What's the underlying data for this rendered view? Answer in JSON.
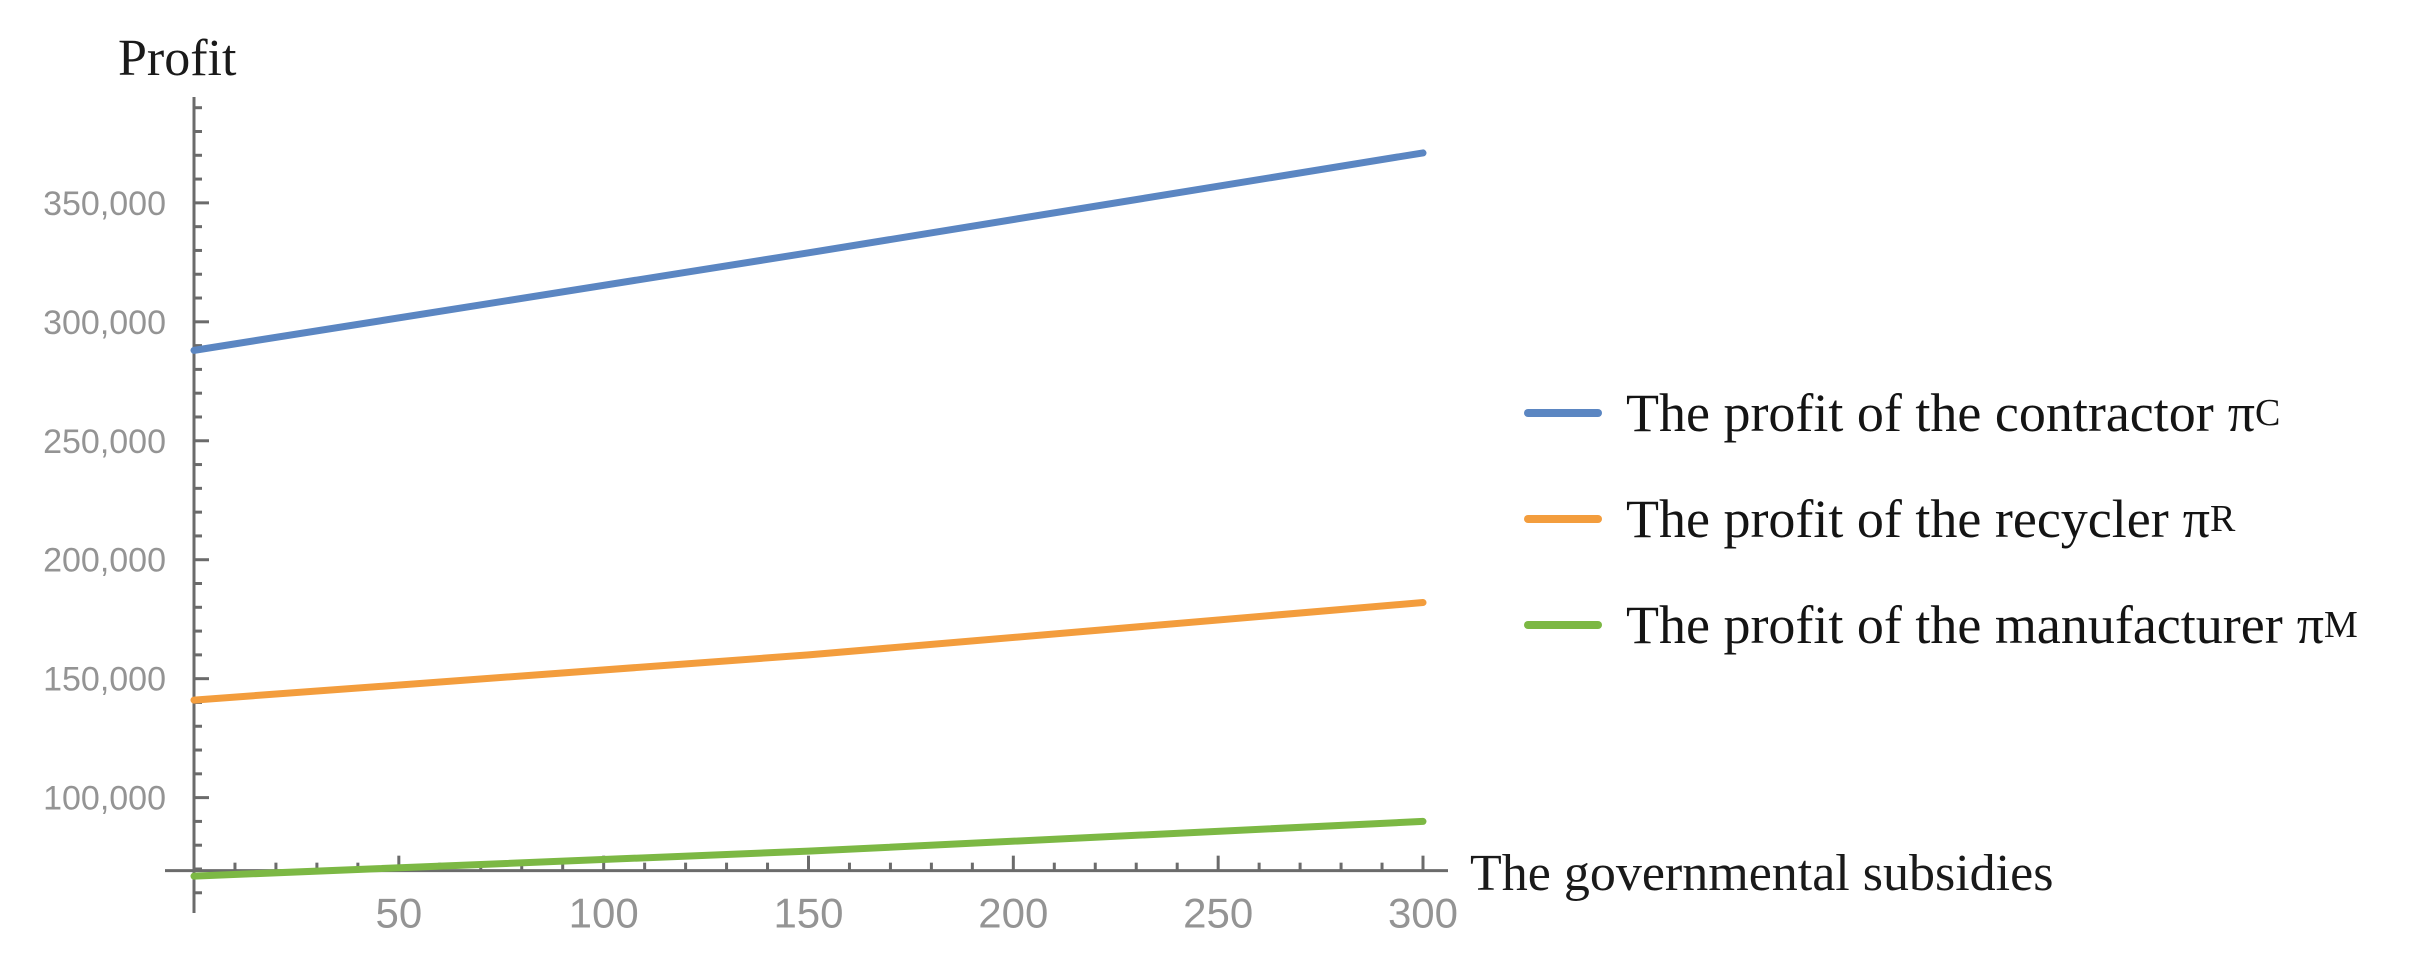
{
  "page": {
    "background_color": "#ffffff"
  },
  "chart_data": {
    "type": "line",
    "title": "",
    "ylabel": "Profit",
    "xlabel": "The governmental subsidies",
    "xlim": [
      0,
      300
    ],
    "ylim": [
      51500,
      394500
    ],
    "axes_origin": {
      "x": 0,
      "y": 69300
    },
    "grid": false,
    "legend_position": "right-center",
    "axis_color": "#6b6b6b",
    "tick_label_color": "#949494",
    "x_ticks": {
      "major": [
        50,
        100,
        150,
        200,
        250,
        300
      ],
      "major_labels": [
        "50",
        "100",
        "150",
        "200",
        "250",
        "300"
      ],
      "minor_step": 10,
      "minor_range": [
        10,
        300
      ]
    },
    "y_ticks": {
      "major": [
        100000,
        150000,
        200000,
        250000,
        300000,
        350000
      ],
      "major_labels": [
        "100,000",
        "150,000",
        "200,000",
        "250,000",
        "300,000",
        "350,000"
      ],
      "minor_step": 10000,
      "minor_range": [
        60000,
        390000
      ]
    },
    "series": [
      {
        "name": "The profit of the contractor πC",
        "color": "#5b86c2",
        "x": [
          0,
          150,
          300
        ],
        "values": [
          288000,
          329000,
          371000
        ]
      },
      {
        "name": "The profit of the recycler πR",
        "color": "#f39d3d",
        "x": [
          0,
          150,
          300
        ],
        "values": [
          141000,
          160000,
          182000
        ]
      },
      {
        "name": "The profit of the manufacturer πM",
        "color": "#7cb844",
        "x": [
          0,
          150,
          300
        ],
        "values": [
          67000,
          77500,
          90000
        ]
      }
    ],
    "legend": [
      {
        "label": "The profit of the contractor",
        "symbol": "π",
        "subscript": "C",
        "color": "#5b86c2"
      },
      {
        "label": "The profit of the recycler",
        "symbol": "π",
        "subscript": "R",
        "color": "#f39d3d"
      },
      {
        "label": "The profit of the manufacturer",
        "symbol": "π",
        "subscript": "M",
        "color": "#7cb844"
      }
    ]
  }
}
